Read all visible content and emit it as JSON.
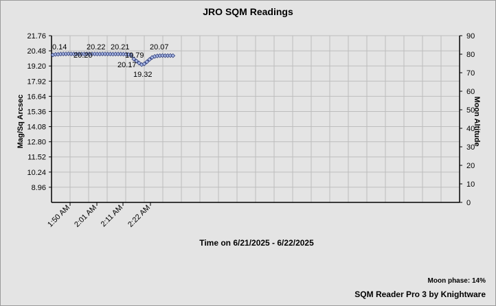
{
  "chart_data": {
    "type": "line",
    "title": "JRO SQM Readings",
    "xlabel": "Time on 6/21/2025 - 6/22/2025",
    "ylabel": "Mag/Sq Arcsec",
    "y2label": "Moon Altitude",
    "yticks": [
      "21.76",
      "20.48",
      "19.20",
      "17.92",
      "16.64",
      "15.36",
      "14.08",
      "12.80",
      "11.52",
      "10.24",
      "8.96"
    ],
    "ylim": [
      7.68,
      21.76
    ],
    "y2ticks": [
      "90",
      "80",
      "70",
      "60",
      "50",
      "40",
      "30",
      "20",
      "10",
      "0"
    ],
    "y2lim": [
      0,
      90
    ],
    "xticks": [
      "1:50 AM",
      "2:01 AM",
      "2:11 AM",
      "2:22 AM"
    ],
    "grid": true,
    "series": [
      {
        "values": [
          20.14,
          20.18,
          20.19,
          20.21,
          20.22,
          20.22,
          20.23,
          20.22,
          20.22,
          20.21,
          20.22,
          20.21,
          20.22,
          20.22,
          20.21,
          20.22,
          20.22,
          20.21,
          20.21,
          20.22,
          20.22,
          20.21,
          20.21,
          20.2,
          20.21,
          20.21,
          20.21,
          20.2,
          20.19,
          20.17,
          20.11,
          19.79,
          19.62,
          19.45,
          19.32,
          19.38,
          19.55,
          19.75,
          19.92,
          20.01,
          20.05,
          20.07,
          20.08,
          20.07,
          20.07,
          20.08,
          20.07
        ]
      }
    ],
    "data_labels": [
      {
        "text": "0.14"
      },
      {
        "text": "20.20"
      },
      {
        "text": "20.22"
      },
      {
        "text": "20.21"
      },
      {
        "text": "20.17"
      },
      {
        "text": "19.79"
      },
      {
        "text": "19.32"
      },
      {
        "text": "20.07"
      }
    ],
    "moon_phase": "Moon phase: 14%",
    "credit": "SQM Reader Pro 3 by Knightware",
    "colors": {
      "background": "#e4e4e4",
      "grid": "#bdbdbd",
      "series": "#2c3a78",
      "marker": "#aebde9"
    }
  }
}
